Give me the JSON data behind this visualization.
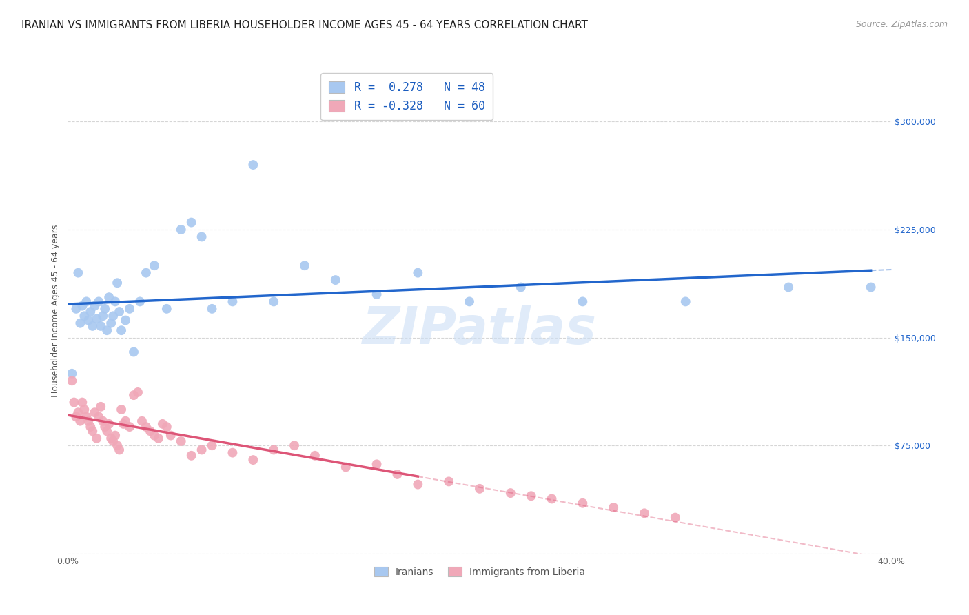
{
  "title": "IRANIAN VS IMMIGRANTS FROM LIBERIA HOUSEHOLDER INCOME AGES 45 - 64 YEARS CORRELATION CHART",
  "source": "Source: ZipAtlas.com",
  "ylabel": "Householder Income Ages 45 - 64 years",
  "xlim": [
    0.0,
    0.4
  ],
  "ylim": [
    0,
    337500
  ],
  "yticks": [
    0,
    75000,
    150000,
    225000,
    300000
  ],
  "yticklabels": [
    "",
    "$75,000",
    "$150,000",
    "$225,000",
    "$300,000"
  ],
  "background_color": "#ffffff",
  "grid_color": "#cccccc",
  "iranian_color": "#a8c8f0",
  "liberia_color": "#f0a8b8",
  "iranian_line_color": "#2266cc",
  "liberia_line_color": "#dd5577",
  "watermark": "ZIPatlas",
  "legend_R1": "0.278",
  "legend_N1": "48",
  "legend_R2": "-0.328",
  "legend_N2": "60",
  "iranians_label": "Iranians",
  "liberia_label": "Immigrants from Liberia",
  "iranian_x": [
    0.002,
    0.004,
    0.005,
    0.006,
    0.007,
    0.008,
    0.009,
    0.01,
    0.011,
    0.012,
    0.013,
    0.014,
    0.015,
    0.016,
    0.017,
    0.018,
    0.019,
    0.02,
    0.021,
    0.022,
    0.023,
    0.024,
    0.025,
    0.026,
    0.028,
    0.03,
    0.032,
    0.035,
    0.038,
    0.042,
    0.048,
    0.055,
    0.06,
    0.065,
    0.07,
    0.08,
    0.09,
    0.1,
    0.115,
    0.13,
    0.15,
    0.17,
    0.195,
    0.22,
    0.25,
    0.3,
    0.35,
    0.39
  ],
  "iranian_y": [
    125000,
    170000,
    195000,
    160000,
    172000,
    165000,
    175000,
    162000,
    168000,
    158000,
    172000,
    163000,
    175000,
    158000,
    165000,
    170000,
    155000,
    178000,
    160000,
    165000,
    175000,
    188000,
    168000,
    155000,
    162000,
    170000,
    140000,
    175000,
    195000,
    200000,
    170000,
    225000,
    230000,
    220000,
    170000,
    175000,
    270000,
    175000,
    200000,
    190000,
    180000,
    195000,
    175000,
    185000,
    175000,
    175000,
    185000,
    185000
  ],
  "liberia_x": [
    0.002,
    0.003,
    0.004,
    0.005,
    0.006,
    0.007,
    0.008,
    0.009,
    0.01,
    0.011,
    0.012,
    0.013,
    0.014,
    0.015,
    0.016,
    0.017,
    0.018,
    0.019,
    0.02,
    0.021,
    0.022,
    0.023,
    0.024,
    0.025,
    0.026,
    0.027,
    0.028,
    0.03,
    0.032,
    0.034,
    0.036,
    0.038,
    0.04,
    0.042,
    0.044,
    0.046,
    0.048,
    0.05,
    0.055,
    0.06,
    0.065,
    0.07,
    0.08,
    0.09,
    0.1,
    0.11,
    0.12,
    0.135,
    0.15,
    0.16,
    0.17,
    0.185,
    0.2,
    0.215,
    0.225,
    0.235,
    0.25,
    0.265,
    0.28,
    0.295
  ],
  "liberia_y": [
    120000,
    105000,
    95000,
    98000,
    92000,
    105000,
    100000,
    95000,
    92000,
    88000,
    85000,
    98000,
    80000,
    95000,
    102000,
    92000,
    88000,
    85000,
    90000,
    80000,
    78000,
    82000,
    75000,
    72000,
    100000,
    90000,
    92000,
    88000,
    110000,
    112000,
    92000,
    88000,
    85000,
    82000,
    80000,
    90000,
    88000,
    82000,
    78000,
    68000,
    72000,
    75000,
    70000,
    65000,
    72000,
    75000,
    68000,
    60000,
    62000,
    55000,
    48000,
    50000,
    45000,
    42000,
    40000,
    38000,
    35000,
    32000,
    28000,
    25000
  ],
  "title_fontsize": 11,
  "axis_label_fontsize": 9,
  "tick_fontsize": 9,
  "source_fontsize": 9
}
